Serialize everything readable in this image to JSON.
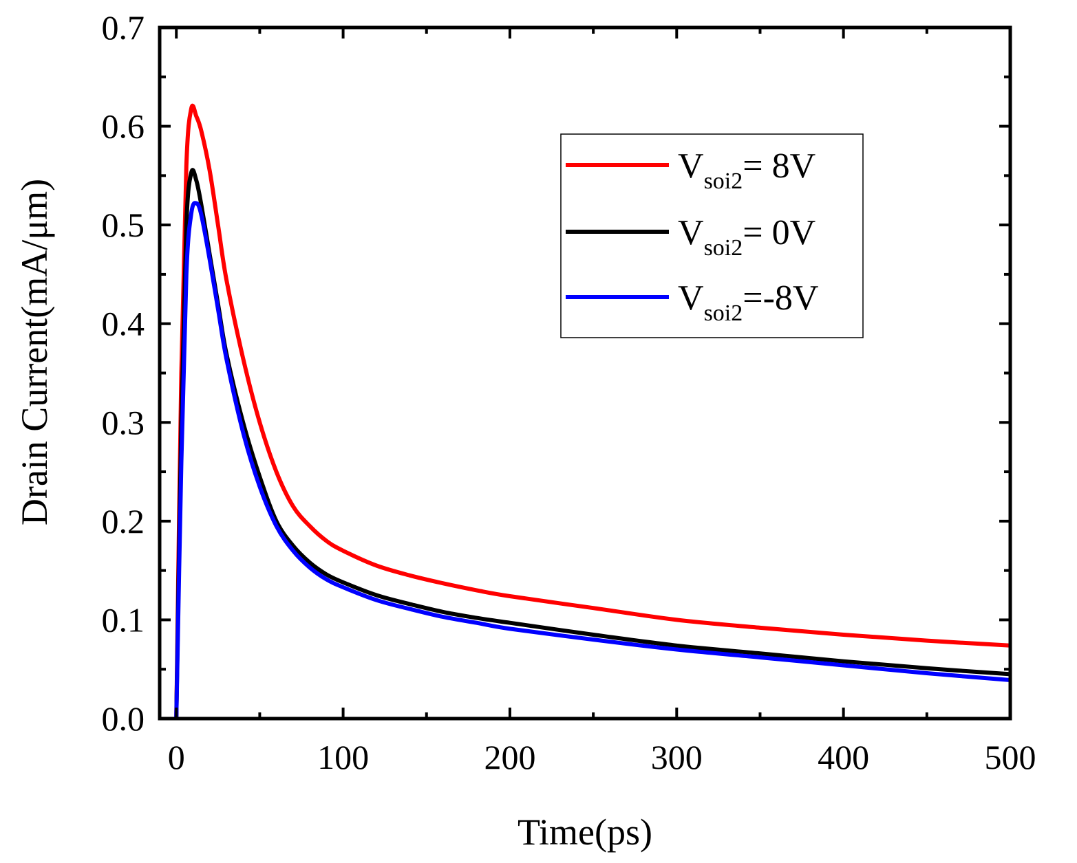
{
  "chart_data": {
    "type": "line",
    "title": "",
    "xlabel": "Time(ps)",
    "ylabel": "Drain Current(mA/μm)",
    "xlim": [
      -10,
      500
    ],
    "ylim": [
      0,
      0.7
    ],
    "xticks": [
      0,
      100,
      200,
      300,
      400,
      500
    ],
    "xtick_labels": [
      "0",
      "100",
      "200",
      "300",
      "400",
      "500"
    ],
    "yticks": [
      0.0,
      0.1,
      0.2,
      0.3,
      0.4,
      0.5,
      0.6,
      0.7
    ],
    "ytick_labels": [
      "0.0",
      "0.1",
      "0.2",
      "0.3",
      "0.4",
      "0.5",
      "0.6",
      "0.7"
    ],
    "grid": false,
    "legend_position": "top-right",
    "series": [
      {
        "name": "V_soi2 = 8V",
        "legend_main": "V",
        "legend_sub": "soi2",
        "legend_rest": "= 8V",
        "color": "#ff0000",
        "x": [
          0,
          3,
          6,
          9,
          12,
          15,
          20,
          25,
          30,
          40,
          50,
          60,
          70,
          80,
          90,
          100,
          120,
          140,
          160,
          180,
          200,
          250,
          300,
          350,
          400,
          450,
          500
        ],
        "y": [
          0.0,
          0.35,
          0.56,
          0.618,
          0.61,
          0.595,
          0.555,
          0.5,
          0.445,
          0.365,
          0.3,
          0.25,
          0.215,
          0.195,
          0.18,
          0.17,
          0.155,
          0.145,
          0.137,
          0.13,
          0.124,
          0.112,
          0.1,
          0.092,
          0.085,
          0.079,
          0.074
        ]
      },
      {
        "name": "V_soi2 = 0V",
        "legend_main": "V",
        "legend_sub": "soi2",
        "legend_rest": "= 0V",
        "color": "#000000",
        "x": [
          0,
          3,
          6,
          9,
          12,
          15,
          20,
          25,
          30,
          40,
          50,
          60,
          70,
          80,
          90,
          100,
          120,
          140,
          160,
          180,
          200,
          250,
          300,
          350,
          400,
          450,
          500
        ],
        "y": [
          0.0,
          0.3,
          0.5,
          0.553,
          0.545,
          0.52,
          0.47,
          0.42,
          0.37,
          0.3,
          0.245,
          0.2,
          0.175,
          0.158,
          0.146,
          0.138,
          0.125,
          0.116,
          0.108,
          0.102,
          0.097,
          0.085,
          0.074,
          0.066,
          0.058,
          0.051,
          0.045
        ]
      },
      {
        "name": "V_soi2 = -8V",
        "legend_main": "V",
        "legend_sub": "soi2",
        "legend_rest": "=-8V",
        "color": "#0000ff",
        "x": [
          0,
          3,
          6,
          9,
          12,
          15,
          20,
          25,
          30,
          40,
          50,
          60,
          70,
          80,
          90,
          100,
          120,
          140,
          160,
          180,
          200,
          250,
          300,
          350,
          400,
          450,
          500
        ],
        "y": [
          0.0,
          0.26,
          0.45,
          0.512,
          0.522,
          0.51,
          0.465,
          0.415,
          0.365,
          0.29,
          0.235,
          0.195,
          0.17,
          0.153,
          0.141,
          0.133,
          0.12,
          0.111,
          0.103,
          0.097,
          0.091,
          0.08,
          0.07,
          0.062,
          0.054,
          0.046,
          0.039
        ]
      }
    ]
  }
}
